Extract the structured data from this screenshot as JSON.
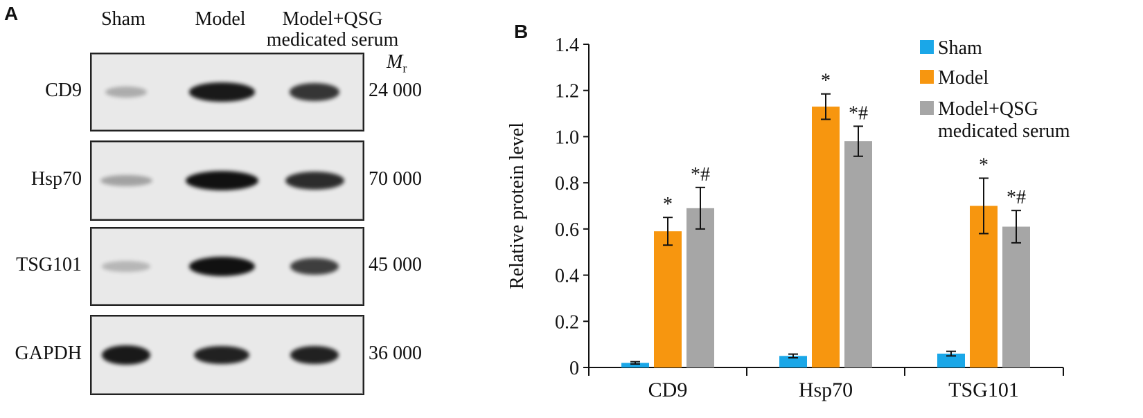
{
  "panel_a": {
    "letter": "A",
    "lanes": [
      "Sham",
      "Model",
      "Model+QSG",
      "medicated serum"
    ],
    "mr_symbol": "M",
    "mr_subscript": "r",
    "rows": [
      {
        "label": "CD9",
        "mw": "24 000",
        "bands": [
          0.15,
          0.95,
          0.8
        ]
      },
      {
        "label": "Hsp70",
        "mw": "70 000",
        "bands": [
          0.2,
          1.0,
          0.85
        ]
      },
      {
        "label": "TSG101",
        "mw": "45 000",
        "bands": [
          0.1,
          1.0,
          0.75
        ]
      },
      {
        "label": "GAPDH",
        "mw": "36 000",
        "bands": [
          0.95,
          0.9,
          0.9
        ]
      }
    ]
  },
  "panel_b": {
    "letter": "B"
  },
  "chart_data": {
    "type": "bar",
    "categories": [
      "CD9",
      "Hsp70",
      "TSG101"
    ],
    "ylabel": "Relative protein level",
    "ylim": [
      0,
      1.4
    ],
    "yticks": [
      0,
      0.2,
      0.4,
      0.6,
      0.8,
      1.0,
      1.2,
      1.4
    ],
    "ytick_labels": [
      "0",
      "0.2",
      "0.4",
      "0.6",
      "0.8",
      "1.0",
      "1.2",
      "1.4"
    ],
    "legend_position": "top-right",
    "series": [
      {
        "name": "Sham",
        "color": "#1aa7e8",
        "values": [
          0.02,
          0.05,
          0.06
        ],
        "errors": [
          0.005,
          0.008,
          0.01
        ],
        "annotations": [
          "",
          "",
          ""
        ]
      },
      {
        "name": "Model",
        "color": "#f7960f",
        "values": [
          0.59,
          1.13,
          0.7
        ],
        "errors": [
          0.06,
          0.055,
          0.12
        ],
        "annotations": [
          "*",
          "*",
          "*"
        ]
      },
      {
        "name": "Model+QSG medicated serum",
        "legend_lines": [
          "Model+QSG",
          "medicated serum"
        ],
        "color": "#a6a6a6",
        "values": [
          0.69,
          0.98,
          0.61
        ],
        "errors": [
          0.09,
          0.065,
          0.07
        ],
        "annotations": [
          "*#",
          "*#",
          "*#"
        ]
      }
    ]
  }
}
